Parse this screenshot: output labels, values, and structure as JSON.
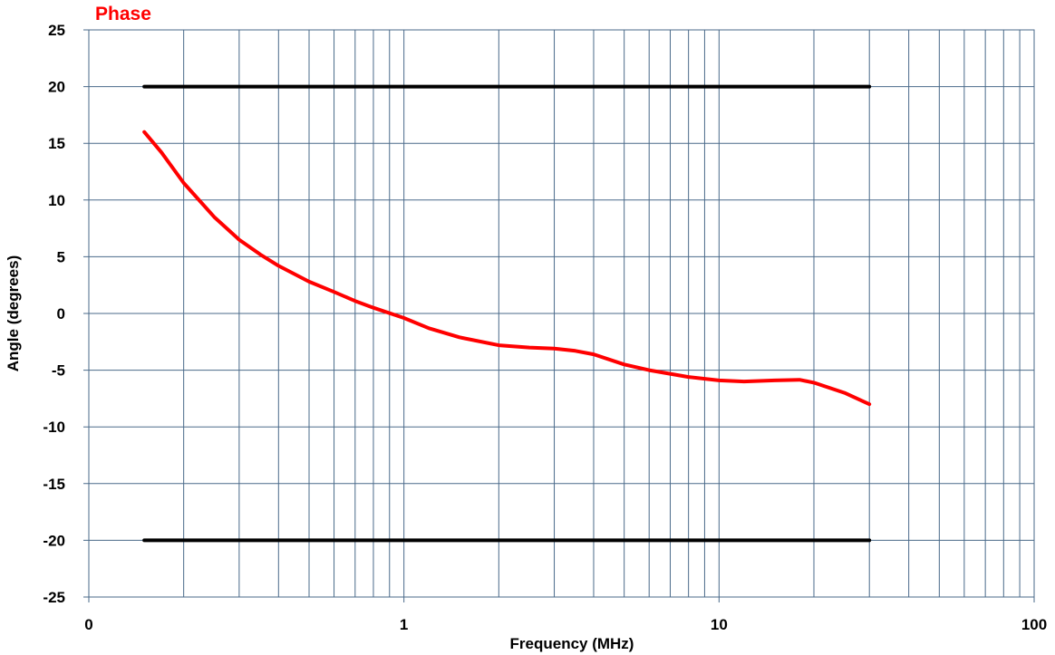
{
  "chart_data": {
    "type": "line",
    "title": "Phase",
    "xlabel": "Frequency (MHz)",
    "ylabel": "Angle (degrees)",
    "x_scale": "log",
    "xlim": [
      0.1,
      100
    ],
    "ylim": [
      -25,
      25
    ],
    "grid": true,
    "x_tick_labels": [
      "0",
      "1",
      "10",
      "100"
    ],
    "x_tick_values": [
      0.1,
      1,
      10,
      100
    ],
    "y_ticks": [
      25,
      20,
      15,
      10,
      5,
      0,
      -5,
      -10,
      -15,
      -20,
      -25
    ],
    "colors": {
      "phase": "#ff0000",
      "limits": "#000000",
      "grid": "#4a6a8a",
      "title": "#ff0000"
    },
    "series": [
      {
        "key": "phase",
        "x": [
          0.15,
          0.17,
          0.2,
          0.25,
          0.3,
          0.35,
          0.4,
          0.5,
          0.6,
          0.7,
          0.8,
          1.0,
          1.2,
          1.5,
          2.0,
          2.5,
          3.0,
          3.5,
          4.0,
          5.0,
          6.0,
          8.0,
          10,
          12,
          15,
          18,
          20,
          25,
          30
        ],
        "y": [
          16,
          14.2,
          11.5,
          8.5,
          6.5,
          5.2,
          4.2,
          2.8,
          1.9,
          1.1,
          0.5,
          -0.4,
          -1.3,
          -2.1,
          -2.8,
          -3.0,
          -3.1,
          -3.3,
          -3.6,
          -4.5,
          -5.0,
          -5.6,
          -5.9,
          -6.0,
          -5.9,
          -5.85,
          -6.1,
          -7.0,
          -8.0
        ]
      },
      {
        "key": "upper-limit",
        "x": [
          0.15,
          30
        ],
        "y": [
          20,
          20
        ]
      },
      {
        "key": "lower-limit",
        "x": [
          0.15,
          30
        ],
        "y": [
          -20,
          -20
        ]
      }
    ]
  }
}
